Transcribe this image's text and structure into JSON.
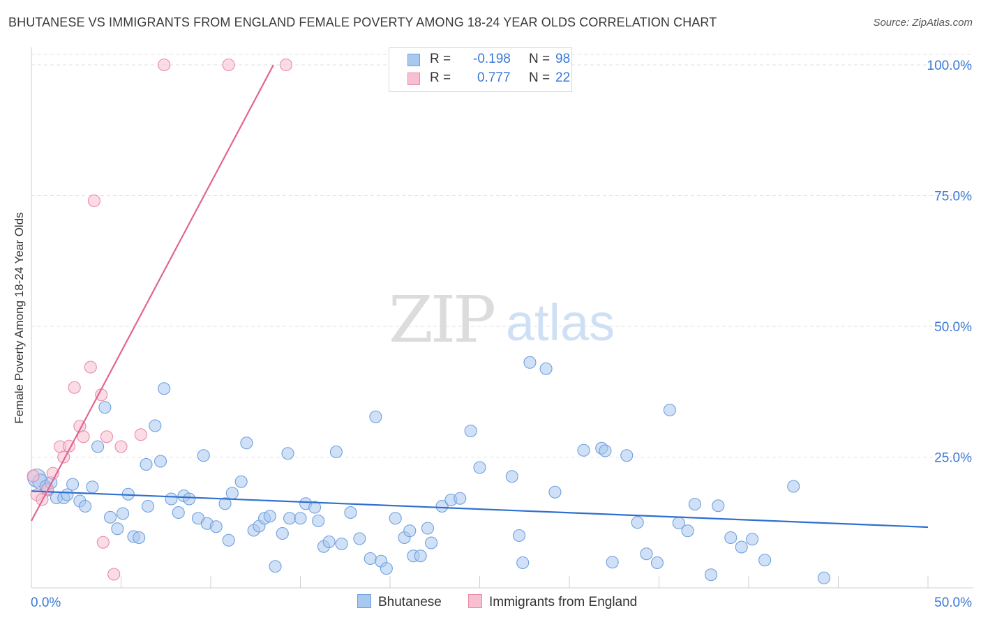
{
  "title": "BHUTANESE VS IMMIGRANTS FROM ENGLAND FEMALE POVERTY AMONG 18-24 YEAR OLDS CORRELATION CHART",
  "source": "Source: ZipAtlas.com",
  "watermark": {
    "zip": "ZIP",
    "atlas": "atlas"
  },
  "legend": {
    "rows": [
      {
        "r_label": "R =",
        "r_value": "-0.198",
        "n_label": "N =",
        "n_value": "98"
      },
      {
        "r_label": "R =",
        "r_value": "0.777",
        "n_label": "N =",
        "n_value": "22"
      }
    ]
  },
  "bottom_legend": [
    "Bhutanese",
    "Immigrants from England"
  ],
  "colors": {
    "blue_fill": "#a9c8f0",
    "blue_stroke": "#6e9fde",
    "blue_line": "#2f6fcf",
    "pink_fill": "#f7bfd0",
    "pink_stroke": "#e88aa8",
    "pink_line": "#e06592",
    "tick_text": "#3a78d6",
    "grid": "#e2e2e2"
  },
  "chart_data": {
    "type": "scatter",
    "title": "BHUTANESE VS IMMIGRANTS FROM ENGLAND FEMALE POVERTY AMONG 18-24 YEAR OLDS CORRELATION CHART",
    "xlabel": "",
    "ylabel": "Female Poverty Among 18-24 Year Olds",
    "xlim": [
      0,
      50
    ],
    "ylim": [
      0,
      102
    ],
    "x_tick_labels": [
      {
        "value": 0,
        "label": "0.0%"
      },
      {
        "value": 50,
        "label": "50.0%"
      }
    ],
    "y_tick_labels": [
      {
        "value": 25,
        "label": "25.0%"
      },
      {
        "value": 50,
        "label": "50.0%"
      },
      {
        "value": 75,
        "label": "75.0%"
      },
      {
        "value": 100,
        "label": "100.0%"
      }
    ],
    "grid": true,
    "legend_position": "top-center",
    "series": [
      {
        "name": "Bhutanese",
        "r": -0.198,
        "n": 98,
        "trend": {
          "x": [
            0,
            50
          ],
          "y": [
            18.5,
            11.6
          ]
        },
        "points": [
          [
            0.3,
            21.0
          ],
          [
            0.5,
            20.3
          ],
          [
            0.8,
            19.4
          ],
          [
            0.9,
            18.7
          ],
          [
            1.1,
            20.1
          ],
          [
            1.4,
            17.2
          ],
          [
            1.8,
            17.2
          ],
          [
            2.0,
            17.8
          ],
          [
            2.3,
            19.8
          ],
          [
            2.7,
            16.6
          ],
          [
            3.0,
            15.6
          ],
          [
            3.4,
            19.3
          ],
          [
            3.7,
            27.0
          ],
          [
            4.1,
            34.5
          ],
          [
            4.4,
            13.5
          ],
          [
            4.8,
            11.3
          ],
          [
            5.1,
            14.2
          ],
          [
            5.4,
            17.9
          ],
          [
            5.7,
            9.8
          ],
          [
            6.0,
            9.6
          ],
          [
            6.4,
            23.6
          ],
          [
            6.5,
            15.6
          ],
          [
            6.9,
            31.0
          ],
          [
            7.2,
            24.2
          ],
          [
            7.4,
            38.1
          ],
          [
            7.8,
            17.0
          ],
          [
            8.2,
            14.4
          ],
          [
            8.5,
            17.6
          ],
          [
            8.8,
            17.0
          ],
          [
            9.3,
            13.3
          ],
          [
            9.6,
            25.3
          ],
          [
            9.8,
            12.3
          ],
          [
            10.3,
            11.7
          ],
          [
            10.8,
            16.1
          ],
          [
            11.0,
            9.1
          ],
          [
            11.2,
            18.1
          ],
          [
            11.7,
            20.3
          ],
          [
            12.0,
            27.7
          ],
          [
            12.4,
            11.0
          ],
          [
            12.7,
            11.8
          ],
          [
            13.0,
            13.3
          ],
          [
            13.3,
            13.7
          ],
          [
            13.6,
            4.1
          ],
          [
            14.0,
            10.4
          ],
          [
            14.3,
            25.7
          ],
          [
            14.4,
            13.3
          ],
          [
            15.0,
            13.3
          ],
          [
            15.3,
            16.1
          ],
          [
            15.8,
            15.4
          ],
          [
            16.0,
            12.8
          ],
          [
            16.3,
            7.9
          ],
          [
            16.6,
            8.8
          ],
          [
            17.0,
            26.0
          ],
          [
            17.3,
            8.4
          ],
          [
            17.8,
            14.4
          ],
          [
            18.3,
            9.4
          ],
          [
            18.9,
            5.6
          ],
          [
            19.2,
            32.7
          ],
          [
            19.5,
            5.1
          ],
          [
            19.8,
            3.7
          ],
          [
            20.3,
            13.3
          ],
          [
            20.8,
            9.6
          ],
          [
            21.1,
            10.9
          ],
          [
            21.3,
            6.1
          ],
          [
            21.7,
            6.1
          ],
          [
            22.1,
            11.4
          ],
          [
            22.3,
            8.6
          ],
          [
            22.9,
            15.6
          ],
          [
            23.4,
            16.8
          ],
          [
            23.9,
            17.1
          ],
          [
            24.5,
            30.0
          ],
          [
            25.0,
            23.0
          ],
          [
            26.8,
            21.3
          ],
          [
            27.2,
            10.0
          ],
          [
            27.4,
            4.8
          ],
          [
            27.8,
            43.1
          ],
          [
            28.7,
            41.9
          ],
          [
            29.2,
            18.3
          ],
          [
            30.8,
            26.3
          ],
          [
            31.8,
            26.7
          ],
          [
            32.0,
            26.2
          ],
          [
            32.4,
            4.9
          ],
          [
            33.2,
            25.3
          ],
          [
            33.8,
            12.5
          ],
          [
            34.3,
            6.5
          ],
          [
            34.9,
            4.8
          ],
          [
            35.6,
            34.0
          ],
          [
            36.1,
            12.4
          ],
          [
            36.6,
            10.9
          ],
          [
            37.0,
            16.0
          ],
          [
            37.9,
            2.5
          ],
          [
            38.3,
            15.7
          ],
          [
            39.0,
            9.6
          ],
          [
            39.6,
            7.8
          ],
          [
            40.2,
            9.3
          ],
          [
            40.9,
            5.3
          ],
          [
            42.5,
            19.4
          ],
          [
            44.2,
            1.9
          ]
        ]
      },
      {
        "name": "Immigrants from England",
        "r": 0.777,
        "n": 22,
        "trend": {
          "x": [
            0,
            13.5
          ],
          "y": [
            12.8,
            100.0
          ]
        },
        "points": [
          [
            0.1,
            21.4
          ],
          [
            0.3,
            17.8
          ],
          [
            0.6,
            16.9
          ],
          [
            0.9,
            18.9
          ],
          [
            1.2,
            21.9
          ],
          [
            1.6,
            27.0
          ],
          [
            1.8,
            25.0
          ],
          [
            2.1,
            27.1
          ],
          [
            2.4,
            38.3
          ],
          [
            2.7,
            30.9
          ],
          [
            2.9,
            28.9
          ],
          [
            3.3,
            42.2
          ],
          [
            3.5,
            74.0
          ],
          [
            3.9,
            36.9
          ],
          [
            4.0,
            8.7
          ],
          [
            4.2,
            28.9
          ],
          [
            4.6,
            2.6
          ],
          [
            5.0,
            27.0
          ],
          [
            6.1,
            29.3
          ],
          [
            7.4,
            100.0
          ],
          [
            11.0,
            100.0
          ],
          [
            14.2,
            100.0
          ]
        ]
      }
    ]
  }
}
